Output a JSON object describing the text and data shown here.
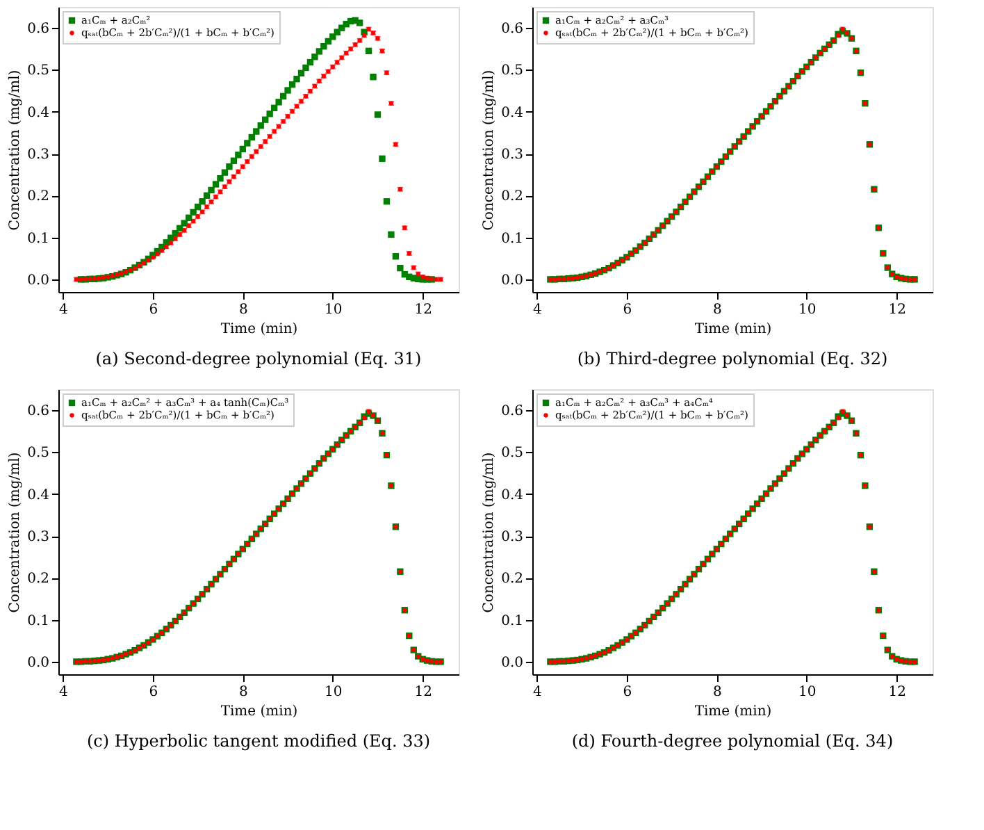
{
  "chart_data": [
    {
      "type": "scatter",
      "title": "(a) Second-degree polynomial (Eq. 31)",
      "xlabel": "Time (min)",
      "ylabel": "Concentration (mg/ml)",
      "xlim": [
        3.9,
        12.8
      ],
      "xticks": [
        4,
        6,
        8,
        10,
        12
      ],
      "ylim": [
        -0.03,
        0.65
      ],
      "yticks": [
        {
          "value": 0,
          "label": "0.0"
        },
        {
          "value": 0.1,
          "label": "0.1"
        },
        {
          "value": 0.2,
          "label": "0.2"
        },
        {
          "value": 0.3,
          "label": "0.3"
        },
        {
          "value": 0.4,
          "label": "0.4"
        },
        {
          "value": 0.5,
          "label": "0.5"
        },
        {
          "value": 0.6,
          "label": "0.6"
        }
      ],
      "grid": false,
      "legend": "top left",
      "series": [
        {
          "name": "a₁Cₘ + a₂Cₘ²",
          "color": "#008000",
          "marker": "square",
          "x": [
            4.4,
            4.5,
            4.6,
            4.7,
            4.8,
            4.9,
            5.0,
            5.1,
            5.2,
            5.3,
            5.4,
            5.5,
            5.6,
            5.7,
            5.8,
            5.9,
            6.0,
            6.1,
            6.2,
            6.3,
            6.4,
            6.5,
            6.6,
            6.7,
            6.8,
            6.9,
            7.0,
            7.1,
            7.2,
            7.3,
            7.4,
            7.5,
            7.6,
            7.7,
            7.8,
            7.9,
            8.0,
            8.1,
            8.2,
            8.3,
            8.4,
            8.5,
            8.6,
            8.7,
            8.8,
            8.9,
            9.0,
            9.1,
            9.2,
            9.3,
            9.4,
            9.5,
            9.6,
            9.7,
            9.8,
            9.9,
            10.0,
            10.1,
            10.2,
            10.3,
            10.4,
            10.5,
            10.6,
            10.7,
            10.8,
            10.9,
            11.0,
            11.1,
            11.2,
            11.3,
            11.4,
            11.5,
            11.6,
            11.7,
            11.8,
            11.9,
            12.0,
            12.1,
            12.2
          ],
          "values": [
            0,
            0,
            0.001,
            0.001,
            0.002,
            0.003,
            0.005,
            0.007,
            0.01,
            0.013,
            0.017,
            0.022,
            0.028,
            0.034,
            0.041,
            0.049,
            0.058,
            0.067,
            0.077,
            0.088,
            0.099,
            0.11,
            0.122,
            0.134,
            0.147,
            0.16,
            0.173,
            0.186,
            0.2,
            0.213,
            0.227,
            0.241,
            0.255,
            0.269,
            0.283,
            0.297,
            0.311,
            0.325,
            0.339,
            0.353,
            0.367,
            0.381,
            0.395,
            0.409,
            0.423,
            0.437,
            0.451,
            0.465,
            0.478,
            0.492,
            0.505,
            0.518,
            0.531,
            0.544,
            0.556,
            0.568,
            0.579,
            0.59,
            0.6,
            0.609,
            0.616,
            0.618,
            0.612,
            0.59,
            0.545,
            0.483,
            0.393,
            0.288,
            0.186,
            0.107,
            0.055,
            0.027,
            0.012,
            0.006,
            0.003,
            0.001,
            0,
            0,
            0
          ]
        },
        {
          "name": "qₛₐₜ(bCₘ + 2b′Cₘ²)/(1 + bCₘ + b′Cₘ²)",
          "color": "#ff0000",
          "marker": "circle",
          "x": [
            4.3,
            4.4,
            4.5,
            4.6,
            4.7,
            4.8,
            4.9,
            5.0,
            5.1,
            5.2,
            5.3,
            5.4,
            5.5,
            5.6,
            5.7,
            5.8,
            5.9,
            6.0,
            6.1,
            6.2,
            6.3,
            6.4,
            6.5,
            6.6,
            6.7,
            6.8,
            6.9,
            7.0,
            7.1,
            7.2,
            7.3,
            7.4,
            7.5,
            7.6,
            7.7,
            7.8,
            7.9,
            8.0,
            8.1,
            8.2,
            8.3,
            8.4,
            8.5,
            8.6,
            8.7,
            8.8,
            8.9,
            9.0,
            9.1,
            9.2,
            9.3,
            9.4,
            9.5,
            9.6,
            9.7,
            9.8,
            9.9,
            10.0,
            10.1,
            10.2,
            10.3,
            10.4,
            10.5,
            10.6,
            10.7,
            10.8,
            10.9,
            11.0,
            11.1,
            11.2,
            11.3,
            11.4,
            11.5,
            11.6,
            11.7,
            11.8,
            11.9,
            12.0,
            12.1,
            12.2,
            12.3,
            12.4
          ],
          "values": [
            0,
            0,
            0.001,
            0.001,
            0.002,
            0.003,
            0.004,
            0.006,
            0.008,
            0.011,
            0.014,
            0.018,
            0.022,
            0.027,
            0.033,
            0.039,
            0.046,
            0.053,
            0.061,
            0.069,
            0.078,
            0.087,
            0.097,
            0.107,
            0.117,
            0.128,
            0.139,
            0.15,
            0.161,
            0.173,
            0.185,
            0.197,
            0.209,
            0.221,
            0.233,
            0.245,
            0.257,
            0.269,
            0.281,
            0.293,
            0.305,
            0.317,
            0.329,
            0.341,
            0.353,
            0.365,
            0.377,
            0.389,
            0.401,
            0.413,
            0.425,
            0.437,
            0.449,
            0.461,
            0.473,
            0.485,
            0.496,
            0.507,
            0.518,
            0.529,
            0.54,
            0.55,
            0.56,
            0.57,
            0.582,
            0.597,
            0.588,
            0.575,
            0.545,
            0.493,
            0.42,
            0.322,
            0.215,
            0.123,
            0.062,
            0.028,
            0.013,
            0.006,
            0.003,
            0.001,
            0,
            0
          ],
          "errors": [
            0.004,
            0.004,
            0.004,
            0.004,
            0.004,
            0.004,
            0.004,
            0.004,
            0.004,
            0.004,
            0.004,
            0.004,
            0.004,
            0.004,
            0.004,
            0.004,
            0.004,
            0.004,
            0.004,
            0.004,
            0.004,
            0.004,
            0.004,
            0.004,
            0.004,
            0.004,
            0.004,
            0.004,
            0.004,
            0.004,
            0.004,
            0.004,
            0.004,
            0.004,
            0.004,
            0.004,
            0.004,
            0.004,
            0.004,
            0.004,
            0.004,
            0.004,
            0.004,
            0.004,
            0.004,
            0.004,
            0.004,
            0.004,
            0.004,
            0.004,
            0.004,
            0.004,
            0.004,
            0.004,
            0.004,
            0.004,
            0.004,
            0.004,
            0.004,
            0.004,
            0.004,
            0.004,
            0.004,
            0.004,
            0.004,
            0.004,
            0.004,
            0.004,
            0.004,
            0.004,
            0.004,
            0.004,
            0.004,
            0.004,
            0.004,
            0.004,
            0.004,
            0.004,
            0.004,
            0.004,
            0.004,
            0.004
          ]
        }
      ]
    },
    {
      "type": "scatter",
      "title": "(b) Third-degree polynomial (Eq. 32)",
      "xlabel": "Time (min)",
      "ylabel": "Concentration (mg/ml)",
      "xlim": [
        3.9,
        12.8
      ],
      "xticks": [
        4,
        6,
        8,
        10,
        12
      ],
      "ylim": [
        -0.03,
        0.65
      ],
      "yticks": [
        {
          "value": 0,
          "label": "0.0"
        },
        {
          "value": 0.1,
          "label": "0.1"
        },
        {
          "value": 0.2,
          "label": "0.2"
        },
        {
          "value": 0.3,
          "label": "0.3"
        },
        {
          "value": 0.4,
          "label": "0.4"
        },
        {
          "value": 0.5,
          "label": "0.5"
        },
        {
          "value": 0.6,
          "label": "0.6"
        }
      ],
      "grid": false,
      "legend": "top left",
      "series": [
        {
          "name": "a₁Cₘ + a₂Cₘ² + a₃Cₘ³",
          "color": "#008000",
          "marker": "square",
          "x": [
            4.3,
            4.4,
            4.5,
            4.6,
            4.7,
            4.8,
            4.9,
            5.0,
            5.1,
            5.2,
            5.3,
            5.4,
            5.5,
            5.6,
            5.7,
            5.8,
            5.9,
            6.0,
            6.1,
            6.2,
            6.3,
            6.4,
            6.5,
            6.6,
            6.7,
            6.8,
            6.9,
            7.0,
            7.1,
            7.2,
            7.3,
            7.4,
            7.5,
            7.6,
            7.7,
            7.8,
            7.9,
            8.0,
            8.1,
            8.2,
            8.3,
            8.4,
            8.5,
            8.6,
            8.7,
            8.8,
            8.9,
            9.0,
            9.1,
            9.2,
            9.3,
            9.4,
            9.5,
            9.6,
            9.7,
            9.8,
            9.9,
            10.0,
            10.1,
            10.2,
            10.3,
            10.4,
            10.5,
            10.6,
            10.7,
            10.8,
            10.9,
            11.0,
            11.1,
            11.2,
            11.3,
            11.4,
            11.5,
            11.6,
            11.7,
            11.8,
            11.9,
            12.0,
            12.1,
            12.2,
            12.3,
            12.4
          ],
          "values": [
            0,
            0,
            0.001,
            0.001,
            0.002,
            0.003,
            0.004,
            0.006,
            0.008,
            0.011,
            0.014,
            0.018,
            0.022,
            0.027,
            0.033,
            0.039,
            0.046,
            0.053,
            0.061,
            0.069,
            0.078,
            0.087,
            0.097,
            0.107,
            0.117,
            0.128,
            0.139,
            0.15,
            0.161,
            0.173,
            0.185,
            0.197,
            0.209,
            0.221,
            0.233,
            0.245,
            0.257,
            0.269,
            0.281,
            0.293,
            0.305,
            0.317,
            0.329,
            0.341,
            0.353,
            0.365,
            0.377,
            0.389,
            0.401,
            0.413,
            0.425,
            0.437,
            0.449,
            0.461,
            0.473,
            0.485,
            0.496,
            0.507,
            0.518,
            0.529,
            0.54,
            0.55,
            0.56,
            0.57,
            0.585,
            0.592,
            0.587,
            0.575,
            0.545,
            0.493,
            0.42,
            0.322,
            0.215,
            0.123,
            0.062,
            0.028,
            0.013,
            0.006,
            0.003,
            0.001,
            0,
            0
          ]
        },
        {
          "name": "qₛₐₜ(bCₘ + 2b′Cₘ²)/(1 + bCₘ + b′Cₘ²)",
          "color": "#ff0000",
          "marker": "circle",
          "x": [
            4.3,
            4.4,
            4.5,
            4.6,
            4.7,
            4.8,
            4.9,
            5.0,
            5.1,
            5.2,
            5.3,
            5.4,
            5.5,
            5.6,
            5.7,
            5.8,
            5.9,
            6.0,
            6.1,
            6.2,
            6.3,
            6.4,
            6.5,
            6.6,
            6.7,
            6.8,
            6.9,
            7.0,
            7.1,
            7.2,
            7.3,
            7.4,
            7.5,
            7.6,
            7.7,
            7.8,
            7.9,
            8.0,
            8.1,
            8.2,
            8.3,
            8.4,
            8.5,
            8.6,
            8.7,
            8.8,
            8.9,
            9.0,
            9.1,
            9.2,
            9.3,
            9.4,
            9.5,
            9.6,
            9.7,
            9.8,
            9.9,
            10.0,
            10.1,
            10.2,
            10.3,
            10.4,
            10.5,
            10.6,
            10.7,
            10.8,
            10.9,
            11.0,
            11.1,
            11.2,
            11.3,
            11.4,
            11.5,
            11.6,
            11.7,
            11.8,
            11.9,
            12.0,
            12.1,
            12.2,
            12.3,
            12.4
          ],
          "values": [
            0,
            0,
            0.001,
            0.001,
            0.002,
            0.003,
            0.004,
            0.006,
            0.008,
            0.011,
            0.014,
            0.018,
            0.022,
            0.027,
            0.033,
            0.039,
            0.046,
            0.053,
            0.061,
            0.069,
            0.078,
            0.087,
            0.097,
            0.107,
            0.117,
            0.128,
            0.139,
            0.15,
            0.161,
            0.173,
            0.185,
            0.197,
            0.209,
            0.221,
            0.233,
            0.245,
            0.257,
            0.269,
            0.281,
            0.293,
            0.305,
            0.317,
            0.329,
            0.341,
            0.353,
            0.365,
            0.377,
            0.389,
            0.401,
            0.413,
            0.425,
            0.437,
            0.449,
            0.461,
            0.473,
            0.485,
            0.496,
            0.507,
            0.518,
            0.529,
            0.54,
            0.55,
            0.56,
            0.57,
            0.582,
            0.597,
            0.588,
            0.575,
            0.545,
            0.493,
            0.42,
            0.322,
            0.215,
            0.123,
            0.062,
            0.028,
            0.013,
            0.006,
            0.003,
            0.001,
            0,
            0
          ],
          "errors": [
            0.004,
            0.004,
            0.004,
            0.004,
            0.004,
            0.004,
            0.004,
            0.004,
            0.004,
            0.004,
            0.004,
            0.004,
            0.004,
            0.004,
            0.004,
            0.004,
            0.004,
            0.004,
            0.004,
            0.004,
            0.004,
            0.004,
            0.004,
            0.004,
            0.004,
            0.004,
            0.004,
            0.004,
            0.004,
            0.004,
            0.004,
            0.004,
            0.004,
            0.004,
            0.004,
            0.004,
            0.004,
            0.004,
            0.004,
            0.004,
            0.004,
            0.004,
            0.004,
            0.004,
            0.004,
            0.004,
            0.004,
            0.004,
            0.004,
            0.004,
            0.004,
            0.004,
            0.004,
            0.004,
            0.004,
            0.004,
            0.004,
            0.004,
            0.004,
            0.004,
            0.004,
            0.004,
            0.004,
            0.004,
            0.004,
            0.004,
            0.004,
            0.004,
            0.004,
            0.004,
            0.004,
            0.004,
            0.004,
            0.004,
            0.004,
            0.004,
            0.004,
            0.004,
            0.004,
            0.004,
            0.004,
            0.004
          ]
        }
      ]
    },
    {
      "type": "scatter",
      "title": "(c) Hyperbolic tangent modified (Eq. 33)",
      "xlabel": "Time (min)",
      "ylabel": "Concentration (mg/ml)",
      "xlim": [
        3.9,
        12.8
      ],
      "xticks": [
        4,
        6,
        8,
        10,
        12
      ],
      "ylim": [
        -0.03,
        0.65
      ],
      "yticks": [
        {
          "value": 0,
          "label": "0.0"
        },
        {
          "value": 0.1,
          "label": "0.1"
        },
        {
          "value": 0.2,
          "label": "0.2"
        },
        {
          "value": 0.3,
          "label": "0.3"
        },
        {
          "value": 0.4,
          "label": "0.4"
        },
        {
          "value": 0.5,
          "label": "0.5"
        },
        {
          "value": 0.6,
          "label": "0.6"
        }
      ],
      "grid": false,
      "legend": "top left",
      "series": [
        {
          "name": "a₁Cₘ + a₂Cₘ² + a₃Cₘ³ + a₄ tanh(Cₘ)Cₘ³",
          "color": "#008000",
          "marker": "square",
          "x": [
            4.3,
            4.4,
            4.5,
            4.6,
            4.7,
            4.8,
            4.9,
            5.0,
            5.1,
            5.2,
            5.3,
            5.4,
            5.5,
            5.6,
            5.7,
            5.8,
            5.9,
            6.0,
            6.1,
            6.2,
            6.3,
            6.4,
            6.5,
            6.6,
            6.7,
            6.8,
            6.9,
            7.0,
            7.1,
            7.2,
            7.3,
            7.4,
            7.5,
            7.6,
            7.7,
            7.8,
            7.9,
            8.0,
            8.1,
            8.2,
            8.3,
            8.4,
            8.5,
            8.6,
            8.7,
            8.8,
            8.9,
            9.0,
            9.1,
            9.2,
            9.3,
            9.4,
            9.5,
            9.6,
            9.7,
            9.8,
            9.9,
            10.0,
            10.1,
            10.2,
            10.3,
            10.4,
            10.5,
            10.6,
            10.7,
            10.8,
            10.9,
            11.0,
            11.1,
            11.2,
            11.3,
            11.4,
            11.5,
            11.6,
            11.7,
            11.8,
            11.9,
            12.0,
            12.1,
            12.2,
            12.3,
            12.4
          ],
          "values": [
            0,
            0,
            0.001,
            0.001,
            0.002,
            0.003,
            0.004,
            0.006,
            0.008,
            0.011,
            0.014,
            0.018,
            0.022,
            0.027,
            0.033,
            0.039,
            0.046,
            0.053,
            0.061,
            0.069,
            0.078,
            0.087,
            0.097,
            0.107,
            0.117,
            0.128,
            0.139,
            0.15,
            0.161,
            0.173,
            0.185,
            0.197,
            0.209,
            0.221,
            0.233,
            0.245,
            0.257,
            0.269,
            0.281,
            0.293,
            0.305,
            0.317,
            0.329,
            0.341,
            0.353,
            0.365,
            0.377,
            0.389,
            0.401,
            0.413,
            0.425,
            0.437,
            0.449,
            0.461,
            0.473,
            0.485,
            0.496,
            0.507,
            0.518,
            0.529,
            0.54,
            0.55,
            0.56,
            0.57,
            0.585,
            0.592,
            0.587,
            0.575,
            0.545,
            0.493,
            0.42,
            0.322,
            0.215,
            0.123,
            0.062,
            0.028,
            0.013,
            0.006,
            0.003,
            0.001,
            0,
            0
          ]
        },
        {
          "name": "qₛₐₜ(bCₘ + 2b′Cₘ²)/(1 + bCₘ + b′Cₘ²)",
          "color": "#ff0000",
          "marker": "circle",
          "x": [
            4.3,
            4.4,
            4.5,
            4.6,
            4.7,
            4.8,
            4.9,
            5.0,
            5.1,
            5.2,
            5.3,
            5.4,
            5.5,
            5.6,
            5.7,
            5.8,
            5.9,
            6.0,
            6.1,
            6.2,
            6.3,
            6.4,
            6.5,
            6.6,
            6.7,
            6.8,
            6.9,
            7.0,
            7.1,
            7.2,
            7.3,
            7.4,
            7.5,
            7.6,
            7.7,
            7.8,
            7.9,
            8.0,
            8.1,
            8.2,
            8.3,
            8.4,
            8.5,
            8.6,
            8.7,
            8.8,
            8.9,
            9.0,
            9.1,
            9.2,
            9.3,
            9.4,
            9.5,
            9.6,
            9.7,
            9.8,
            9.9,
            10.0,
            10.1,
            10.2,
            10.3,
            10.4,
            10.5,
            10.6,
            10.7,
            10.8,
            10.9,
            11.0,
            11.1,
            11.2,
            11.3,
            11.4,
            11.5,
            11.6,
            11.7,
            11.8,
            11.9,
            12.0,
            12.1,
            12.2,
            12.3,
            12.4
          ],
          "values": [
            0,
            0,
            0.001,
            0.001,
            0.002,
            0.003,
            0.004,
            0.006,
            0.008,
            0.011,
            0.014,
            0.018,
            0.022,
            0.027,
            0.033,
            0.039,
            0.046,
            0.053,
            0.061,
            0.069,
            0.078,
            0.087,
            0.097,
            0.107,
            0.117,
            0.128,
            0.139,
            0.15,
            0.161,
            0.173,
            0.185,
            0.197,
            0.209,
            0.221,
            0.233,
            0.245,
            0.257,
            0.269,
            0.281,
            0.293,
            0.305,
            0.317,
            0.329,
            0.341,
            0.353,
            0.365,
            0.377,
            0.389,
            0.401,
            0.413,
            0.425,
            0.437,
            0.449,
            0.461,
            0.473,
            0.485,
            0.496,
            0.507,
            0.518,
            0.529,
            0.54,
            0.55,
            0.56,
            0.57,
            0.582,
            0.597,
            0.588,
            0.575,
            0.545,
            0.493,
            0.42,
            0.322,
            0.215,
            0.123,
            0.062,
            0.028,
            0.013,
            0.006,
            0.003,
            0.001,
            0,
            0
          ],
          "errors": [
            0.004,
            0.004,
            0.004,
            0.004,
            0.004,
            0.004,
            0.004,
            0.004,
            0.004,
            0.004,
            0.004,
            0.004,
            0.004,
            0.004,
            0.004,
            0.004,
            0.004,
            0.004,
            0.004,
            0.004,
            0.004,
            0.004,
            0.004,
            0.004,
            0.004,
            0.004,
            0.004,
            0.004,
            0.004,
            0.004,
            0.004,
            0.004,
            0.004,
            0.004,
            0.004,
            0.004,
            0.004,
            0.004,
            0.004,
            0.004,
            0.004,
            0.004,
            0.004,
            0.004,
            0.004,
            0.004,
            0.004,
            0.004,
            0.004,
            0.004,
            0.004,
            0.004,
            0.004,
            0.004,
            0.004,
            0.004,
            0.004,
            0.004,
            0.004,
            0.004,
            0.004,
            0.004,
            0.004,
            0.004,
            0.004,
            0.004,
            0.004,
            0.004,
            0.004,
            0.004,
            0.004,
            0.004,
            0.004,
            0.004,
            0.004,
            0.004,
            0.004,
            0.004,
            0.004,
            0.004,
            0.004,
            0.004
          ]
        }
      ]
    },
    {
      "type": "scatter",
      "title": "(d) Fourth-degree polynomial (Eq. 34)",
      "xlabel": "Time (min)",
      "ylabel": "Concentration (mg/ml)",
      "xlim": [
        3.9,
        12.8
      ],
      "xticks": [
        4,
        6,
        8,
        10,
        12
      ],
      "ylim": [
        -0.03,
        0.65
      ],
      "yticks": [
        {
          "value": 0,
          "label": "0.0"
        },
        {
          "value": 0.1,
          "label": "0.1"
        },
        {
          "value": 0.2,
          "label": "0.2"
        },
        {
          "value": 0.3,
          "label": "0.3"
        },
        {
          "value": 0.4,
          "label": "0.4"
        },
        {
          "value": 0.5,
          "label": "0.5"
        },
        {
          "value": 0.6,
          "label": "0.6"
        }
      ],
      "grid": false,
      "legend": "top left",
      "series": [
        {
          "name": "a₁Cₘ + a₂Cₘ² + a₃Cₘ³ + a₄Cₘ⁴",
          "color": "#008000",
          "marker": "square",
          "x": [
            4.3,
            4.4,
            4.5,
            4.6,
            4.7,
            4.8,
            4.9,
            5.0,
            5.1,
            5.2,
            5.3,
            5.4,
            5.5,
            5.6,
            5.7,
            5.8,
            5.9,
            6.0,
            6.1,
            6.2,
            6.3,
            6.4,
            6.5,
            6.6,
            6.7,
            6.8,
            6.9,
            7.0,
            7.1,
            7.2,
            7.3,
            7.4,
            7.5,
            7.6,
            7.7,
            7.8,
            7.9,
            8.0,
            8.1,
            8.2,
            8.3,
            8.4,
            8.5,
            8.6,
            8.7,
            8.8,
            8.9,
            9.0,
            9.1,
            9.2,
            9.3,
            9.4,
            9.5,
            9.6,
            9.7,
            9.8,
            9.9,
            10.0,
            10.1,
            10.2,
            10.3,
            10.4,
            10.5,
            10.6,
            10.7,
            10.8,
            10.9,
            11.0,
            11.1,
            11.2,
            11.3,
            11.4,
            11.5,
            11.6,
            11.7,
            11.8,
            11.9,
            12.0,
            12.1,
            12.2,
            12.3,
            12.4
          ],
          "values": [
            0,
            0,
            0.001,
            0.001,
            0.002,
            0.003,
            0.004,
            0.006,
            0.008,
            0.011,
            0.014,
            0.018,
            0.022,
            0.027,
            0.033,
            0.039,
            0.046,
            0.053,
            0.061,
            0.069,
            0.078,
            0.087,
            0.097,
            0.107,
            0.117,
            0.128,
            0.139,
            0.15,
            0.161,
            0.173,
            0.185,
            0.197,
            0.209,
            0.221,
            0.233,
            0.245,
            0.257,
            0.269,
            0.281,
            0.293,
            0.305,
            0.317,
            0.329,
            0.341,
            0.353,
            0.365,
            0.377,
            0.389,
            0.401,
            0.413,
            0.425,
            0.437,
            0.449,
            0.461,
            0.473,
            0.485,
            0.496,
            0.507,
            0.518,
            0.529,
            0.54,
            0.55,
            0.56,
            0.57,
            0.585,
            0.592,
            0.587,
            0.575,
            0.545,
            0.493,
            0.42,
            0.322,
            0.215,
            0.123,
            0.062,
            0.028,
            0.013,
            0.006,
            0.003,
            0.001,
            0,
            0
          ]
        },
        {
          "name": "qₛₐₜ(bCₘ + 2b′Cₘ²)/(1 + bCₘ + b′Cₘ²)",
          "color": "#ff0000",
          "marker": "circle",
          "x": [
            4.3,
            4.4,
            4.5,
            4.6,
            4.7,
            4.8,
            4.9,
            5.0,
            5.1,
            5.2,
            5.3,
            5.4,
            5.5,
            5.6,
            5.7,
            5.8,
            5.9,
            6.0,
            6.1,
            6.2,
            6.3,
            6.4,
            6.5,
            6.6,
            6.7,
            6.8,
            6.9,
            7.0,
            7.1,
            7.2,
            7.3,
            7.4,
            7.5,
            7.6,
            7.7,
            7.8,
            7.9,
            8.0,
            8.1,
            8.2,
            8.3,
            8.4,
            8.5,
            8.6,
            8.7,
            8.8,
            8.9,
            9.0,
            9.1,
            9.2,
            9.3,
            9.4,
            9.5,
            9.6,
            9.7,
            9.8,
            9.9,
            10.0,
            10.1,
            10.2,
            10.3,
            10.4,
            10.5,
            10.6,
            10.7,
            10.8,
            10.9,
            11.0,
            11.1,
            11.2,
            11.3,
            11.4,
            11.5,
            11.6,
            11.7,
            11.8,
            11.9,
            12.0,
            12.1,
            12.2,
            12.3,
            12.4
          ],
          "values": [
            0,
            0,
            0.001,
            0.001,
            0.002,
            0.003,
            0.004,
            0.006,
            0.008,
            0.011,
            0.014,
            0.018,
            0.022,
            0.027,
            0.033,
            0.039,
            0.046,
            0.053,
            0.061,
            0.069,
            0.078,
            0.087,
            0.097,
            0.107,
            0.117,
            0.128,
            0.139,
            0.15,
            0.161,
            0.173,
            0.185,
            0.197,
            0.209,
            0.221,
            0.233,
            0.245,
            0.257,
            0.269,
            0.281,
            0.293,
            0.305,
            0.317,
            0.329,
            0.341,
            0.353,
            0.365,
            0.377,
            0.389,
            0.401,
            0.413,
            0.425,
            0.437,
            0.449,
            0.461,
            0.473,
            0.485,
            0.496,
            0.507,
            0.518,
            0.529,
            0.54,
            0.55,
            0.56,
            0.57,
            0.582,
            0.597,
            0.588,
            0.575,
            0.545,
            0.493,
            0.42,
            0.322,
            0.215,
            0.123,
            0.062,
            0.028,
            0.013,
            0.006,
            0.003,
            0.001,
            0,
            0
          ],
          "errors": [
            0.004,
            0.004,
            0.004,
            0.004,
            0.004,
            0.004,
            0.004,
            0.004,
            0.004,
            0.004,
            0.004,
            0.004,
            0.004,
            0.004,
            0.004,
            0.004,
            0.004,
            0.004,
            0.004,
            0.004,
            0.004,
            0.004,
            0.004,
            0.004,
            0.004,
            0.004,
            0.004,
            0.004,
            0.004,
            0.004,
            0.004,
            0.004,
            0.004,
            0.004,
            0.004,
            0.004,
            0.004,
            0.004,
            0.004,
            0.004,
            0.004,
            0.004,
            0.004,
            0.004,
            0.004,
            0.004,
            0.004,
            0.004,
            0.004,
            0.004,
            0.004,
            0.004,
            0.004,
            0.004,
            0.004,
            0.004,
            0.004,
            0.004,
            0.004,
            0.004,
            0.004,
            0.004,
            0.004,
            0.004,
            0.004,
            0.004,
            0.004,
            0.004,
            0.004,
            0.004,
            0.004,
            0.004,
            0.004,
            0.004,
            0.004,
            0.004,
            0.004,
            0.004,
            0.004,
            0.004,
            0.004,
            0.004
          ]
        }
      ]
    }
  ]
}
